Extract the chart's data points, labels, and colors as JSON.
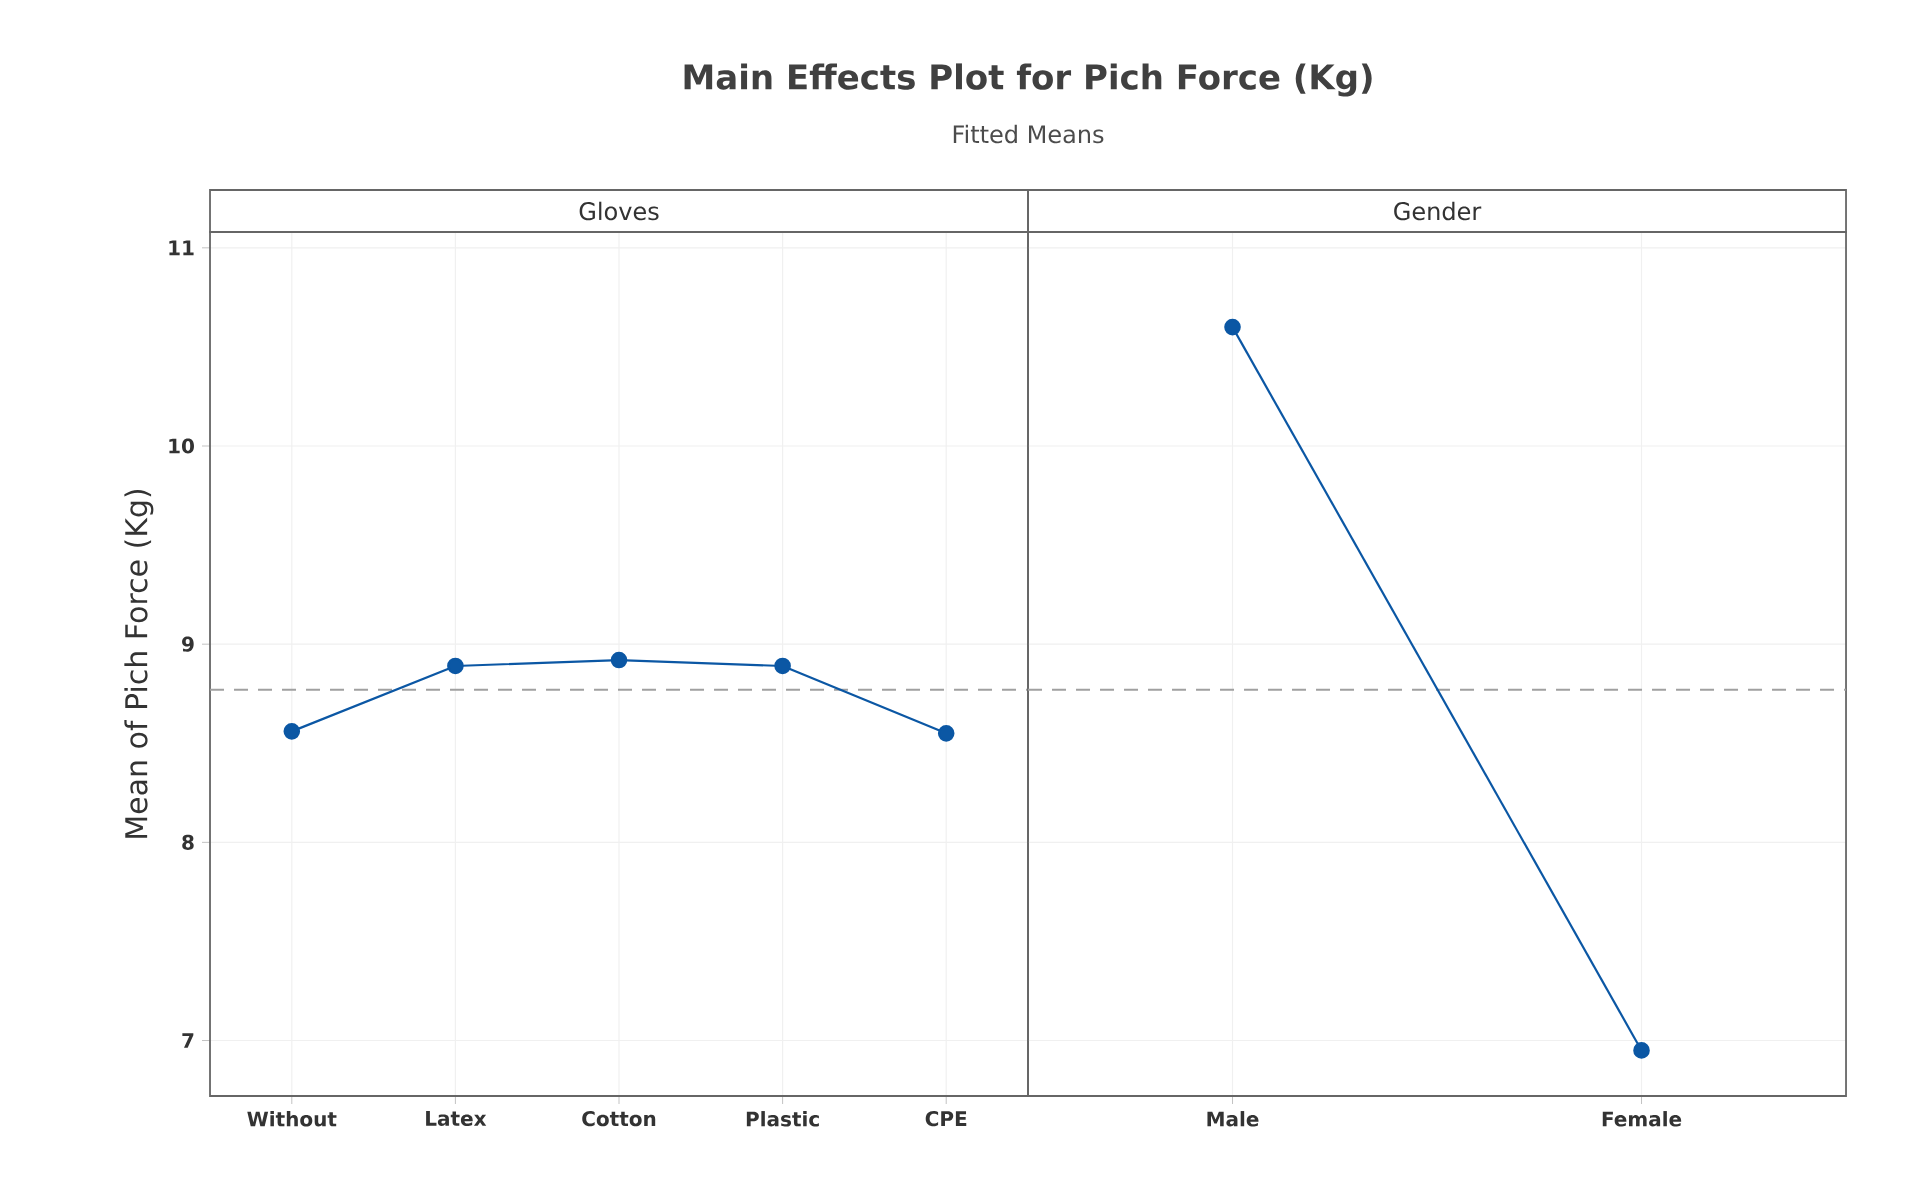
{
  "chart_data": [
    {
      "type": "line",
      "title": "Main Effects Plot for Pich Force (Kg)",
      "subtitle": "Fitted Means",
      "xlabel": "Gloves",
      "ylabel": "Mean of Pich Force (Kg)",
      "categories": [
        "Without",
        "Latex",
        "Cotton",
        "Plastic",
        "CPE"
      ],
      "series": [
        {
          "color": "#0b57a4",
          "values": [
            8.56,
            8.89,
            8.92,
            8.89,
            8.55
          ]
        }
      ],
      "ylim": [
        6.72,
        11.08
      ],
      "yticks": [
        7,
        8,
        9,
        10,
        11
      ],
      "grid": true,
      "marker": "circle",
      "line_style": "solid",
      "ref_lines": [
        {
          "axis": "y",
          "value": 8.77,
          "color": "#a0a0a0",
          "line_style": "dashed"
        }
      ]
    },
    {
      "type": "line",
      "xlabel": "Gender",
      "categories": [
        "Male",
        "Female"
      ],
      "series": [
        {
          "color": "#0b57a4",
          "values": [
            10.6,
            6.95
          ]
        }
      ],
      "ylim": [
        6.72,
        11.08
      ],
      "yticks": [
        7,
        8,
        9,
        10,
        11
      ],
      "grid": true,
      "marker": "circle",
      "line_style": "solid",
      "tick_labels": "x",
      "ref_lines": [
        {
          "axis": "y",
          "value": 8.77,
          "color": "#a0a0a0",
          "line_style": "dashed"
        }
      ]
    }
  ]
}
